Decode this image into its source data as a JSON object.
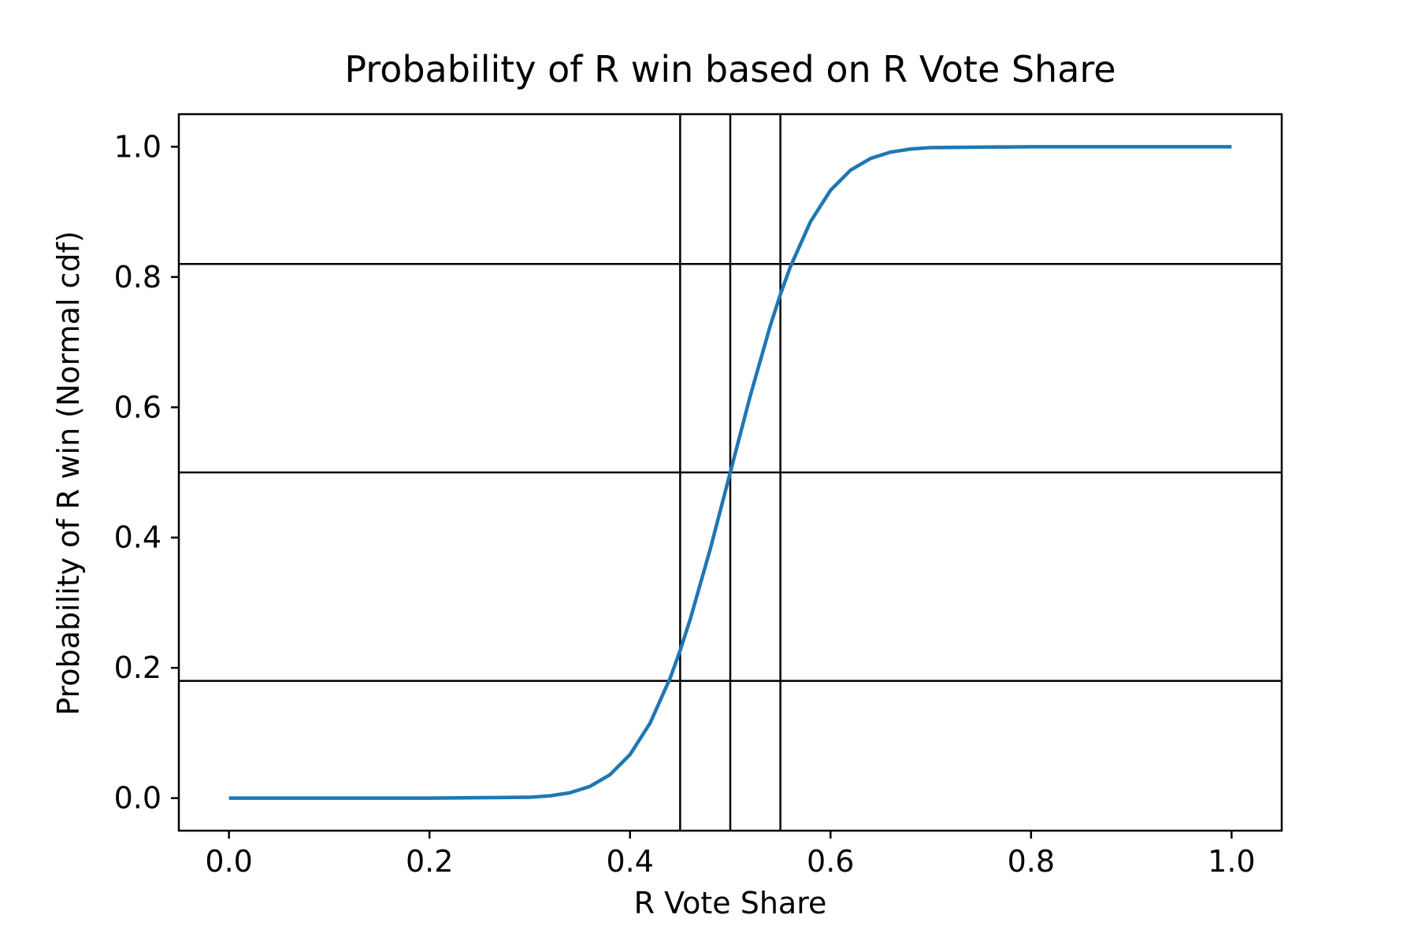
{
  "chart_data": {
    "type": "line",
    "title": "Probability of R win based on R Vote Share",
    "xlabel": "R Vote Share",
    "ylabel": "Probability of R win (Normal cdf)",
    "xlim": [
      -0.05,
      1.05
    ],
    "ylim": [
      -0.05,
      1.05
    ],
    "xticks": [
      0.0,
      0.2,
      0.4,
      0.6,
      0.8,
      1.0
    ],
    "xtick_labels": [
      "0.0",
      "0.2",
      "0.4",
      "0.6",
      "0.8",
      "1.0"
    ],
    "yticks": [
      0.0,
      0.2,
      0.4,
      0.6,
      0.8,
      1.0
    ],
    "ytick_labels": [
      "0.0",
      "0.2",
      "0.4",
      "0.6",
      "0.8",
      "1.0"
    ],
    "grid": false,
    "series": [
      {
        "color": "#1f77b4",
        "x": [
          0.0,
          0.1,
          0.2,
          0.3,
          0.32,
          0.34,
          0.36,
          0.38,
          0.4,
          0.42,
          0.44,
          0.45,
          0.46,
          0.48,
          0.5,
          0.52,
          0.54,
          0.55,
          0.56,
          0.58,
          0.6,
          0.62,
          0.64,
          0.66,
          0.68,
          0.7,
          0.8,
          0.9,
          1.0
        ],
        "y": [
          0.0,
          0.0,
          0.0,
          0.0013,
          0.0035,
          0.0082,
          0.0179,
          0.0359,
          0.0668,
          0.1151,
          0.1841,
          0.2266,
          0.2743,
          0.3821,
          0.5,
          0.6179,
          0.7257,
          0.7734,
          0.8159,
          0.8849,
          0.9332,
          0.9641,
          0.9821,
          0.9918,
          0.9965,
          0.9987,
          1.0,
          1.0,
          1.0
        ]
      }
    ],
    "reference_lines": {
      "vertical": [
        0.45,
        0.5,
        0.55
      ],
      "horizontal": [
        0.18,
        0.5,
        0.82
      ],
      "color": "#000000"
    }
  }
}
